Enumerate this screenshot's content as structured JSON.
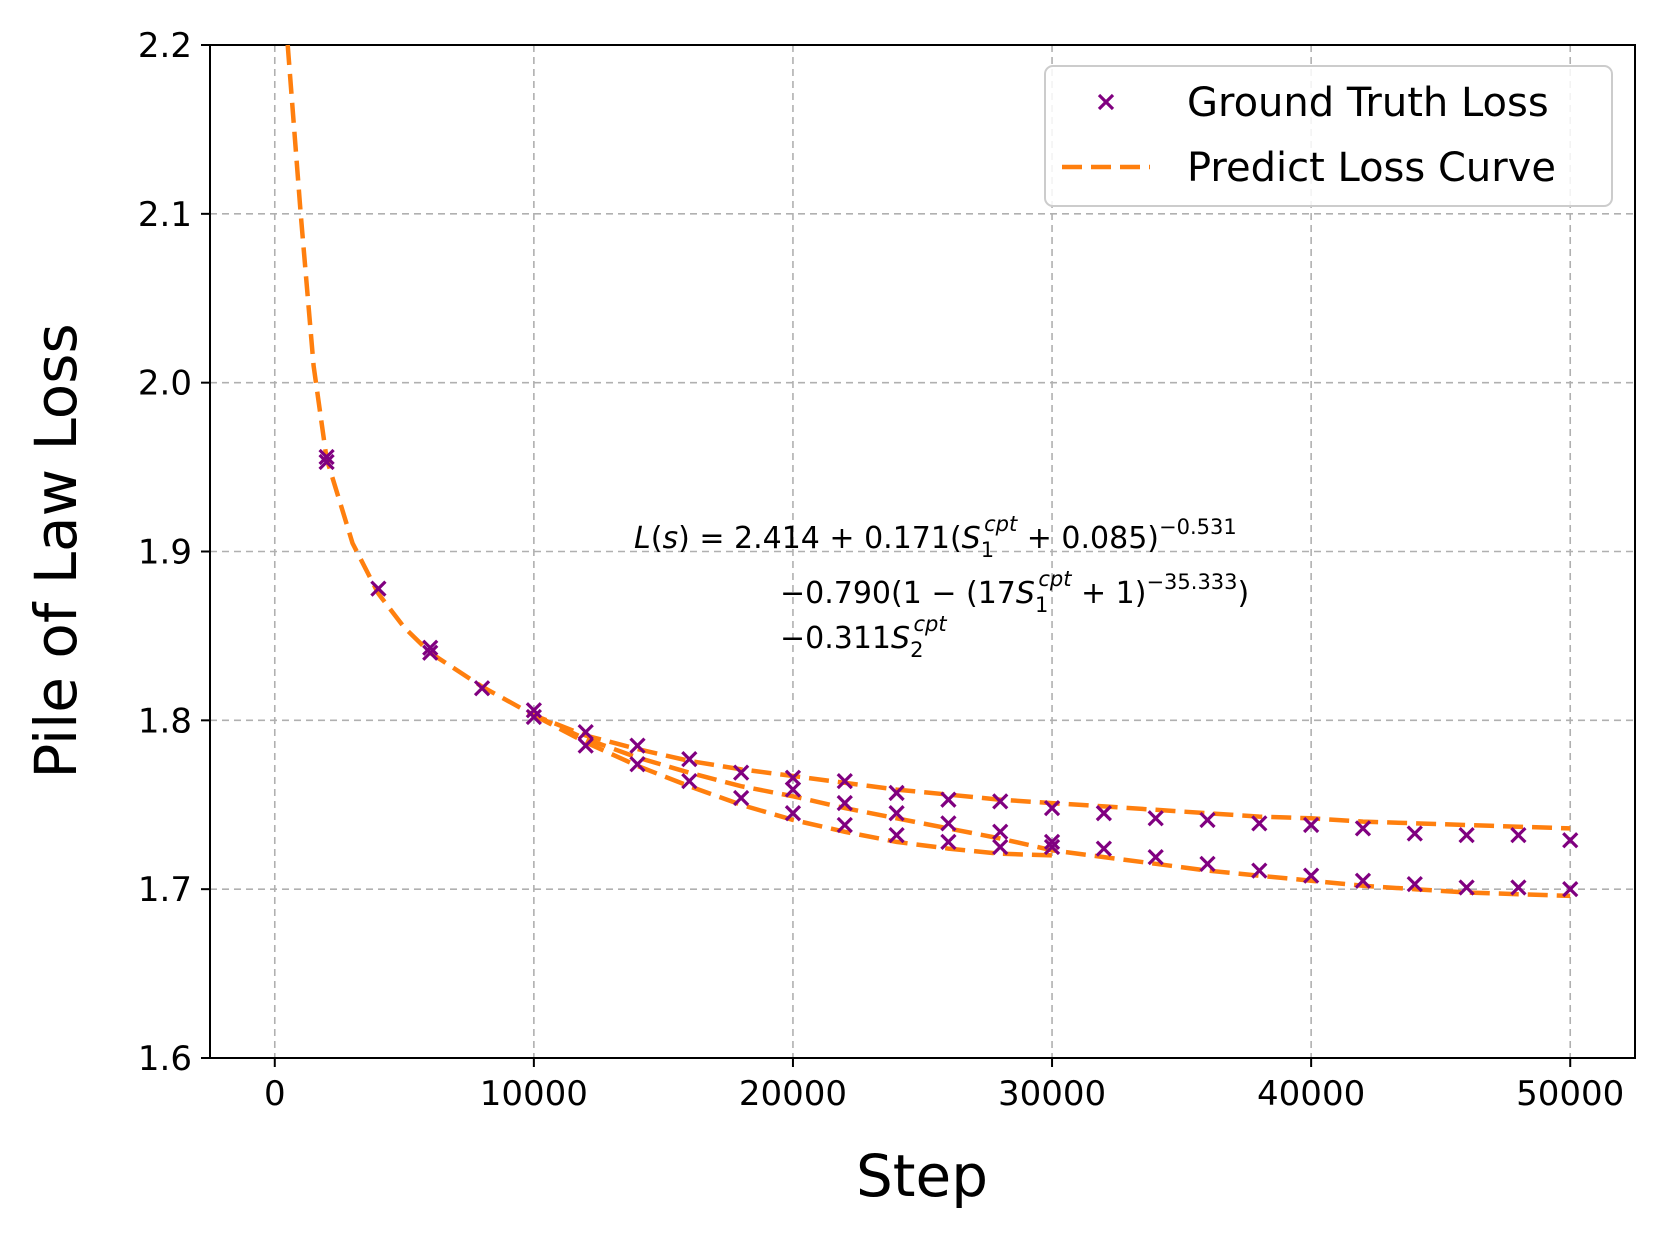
{
  "chart_data": {
    "type": "scatter",
    "title": "",
    "xlabel": "Step",
    "ylabel": "Pile of Law Loss",
    "xlim": [
      -2500,
      52500
    ],
    "ylim": [
      1.6,
      2.2
    ],
    "xticks": [
      0,
      10000,
      20000,
      30000,
      40000,
      50000
    ],
    "xtick_labels": [
      "0",
      "10000",
      "20000",
      "30000",
      "40000",
      "50000"
    ],
    "yticks": [
      1.6,
      1.7,
      1.8,
      1.9,
      2.0,
      2.1,
      2.2
    ],
    "ytick_labels": [
      "1.6",
      "1.7",
      "1.8",
      "1.9",
      "2.0",
      "2.1",
      "2.2"
    ],
    "grid": true,
    "legend": {
      "placement": "top-right",
      "entries": [
        "Ground Truth Loss",
        "Predict Loss Curve"
      ]
    },
    "colors": {
      "points": "#800080",
      "curve": "#ff7f0e"
    },
    "annotation": {
      "line1": "L(s) = 2.414 + 0.171(S1cpt + 0.085)−0.531",
      "line2": "−0.790(1 − (17S1cpt + 1)−35.333)",
      "line3": "−0.311S2cpt"
    },
    "series": [
      {
        "name": "Ground Truth Loss",
        "type": "scatter",
        "x": [
          2000,
          2000,
          4000,
          6000,
          6000,
          8000,
          10000,
          10000,
          12000,
          12000,
          14000,
          14000,
          16000,
          16000,
          18000,
          18000,
          20000,
          20000,
          20000,
          22000,
          22000,
          22000,
          24000,
          24000,
          24000,
          26000,
          26000,
          26000,
          28000,
          28000,
          28000,
          30000,
          30000,
          30000,
          32000,
          32000,
          34000,
          34000,
          36000,
          36000,
          38000,
          38000,
          40000,
          40000,
          42000,
          42000,
          44000,
          44000,
          46000,
          46000,
          48000,
          48000,
          50000,
          50000
        ],
        "y": [
          1.956,
          1.953,
          1.878,
          1.843,
          1.84,
          1.819,
          1.806,
          1.802,
          1.793,
          1.785,
          1.785,
          1.774,
          1.777,
          1.764,
          1.769,
          1.754,
          1.766,
          1.759,
          1.745,
          1.764,
          1.751,
          1.738,
          1.757,
          1.745,
          1.732,
          1.753,
          1.739,
          1.728,
          1.752,
          1.734,
          1.725,
          1.748,
          1.728,
          1.725,
          1.745,
          1.724,
          1.742,
          1.719,
          1.741,
          1.715,
          1.739,
          1.711,
          1.738,
          1.708,
          1.736,
          1.705,
          1.733,
          1.703,
          1.732,
          1.701,
          1.732,
          1.701,
          1.729,
          1.7
        ]
      },
      {
        "name": "Predict Loss Curve (upper)",
        "type": "line",
        "x": [
          500,
          1000,
          1500,
          2000,
          3000,
          4000,
          5000,
          6000,
          8000,
          10000,
          12000,
          14000,
          16000,
          18000,
          20000,
          22000,
          24000,
          26000,
          28000,
          30000,
          32000,
          34000,
          36000,
          38000,
          40000,
          42000,
          44000,
          46000,
          48000,
          50000
        ],
        "y": [
          2.2,
          2.1,
          2.01,
          1.955,
          1.905,
          1.875,
          1.855,
          1.84,
          1.82,
          1.803,
          1.791,
          1.783,
          1.776,
          1.771,
          1.767,
          1.763,
          1.759,
          1.756,
          1.753,
          1.751,
          1.749,
          1.747,
          1.745,
          1.743,
          1.742,
          1.74,
          1.739,
          1.738,
          1.737,
          1.736
        ]
      },
      {
        "name": "Predict Loss Curve (middle)",
        "type": "line",
        "x": [
          10000,
          12000,
          14000,
          16000,
          18000,
          20000,
          22000,
          24000,
          26000,
          28000,
          30000,
          32000,
          34000,
          36000,
          38000,
          40000,
          42000,
          44000,
          46000,
          48000,
          50000
        ],
        "y": [
          1.803,
          1.789,
          1.778,
          1.769,
          1.761,
          1.755,
          1.748,
          1.742,
          1.736,
          1.73,
          1.723,
          1.719,
          1.715,
          1.711,
          1.708,
          1.705,
          1.702,
          1.7,
          1.698,
          1.697,
          1.696
        ]
      },
      {
        "name": "Predict Loss Curve (lower)",
        "type": "line",
        "x": [
          10000,
          12000,
          14000,
          16000,
          18000,
          20000,
          22000,
          24000,
          26000,
          28000,
          30000
        ],
        "y": [
          1.803,
          1.787,
          1.773,
          1.761,
          1.75,
          1.741,
          1.734,
          1.728,
          1.724,
          1.721,
          1.72
        ]
      }
    ]
  }
}
